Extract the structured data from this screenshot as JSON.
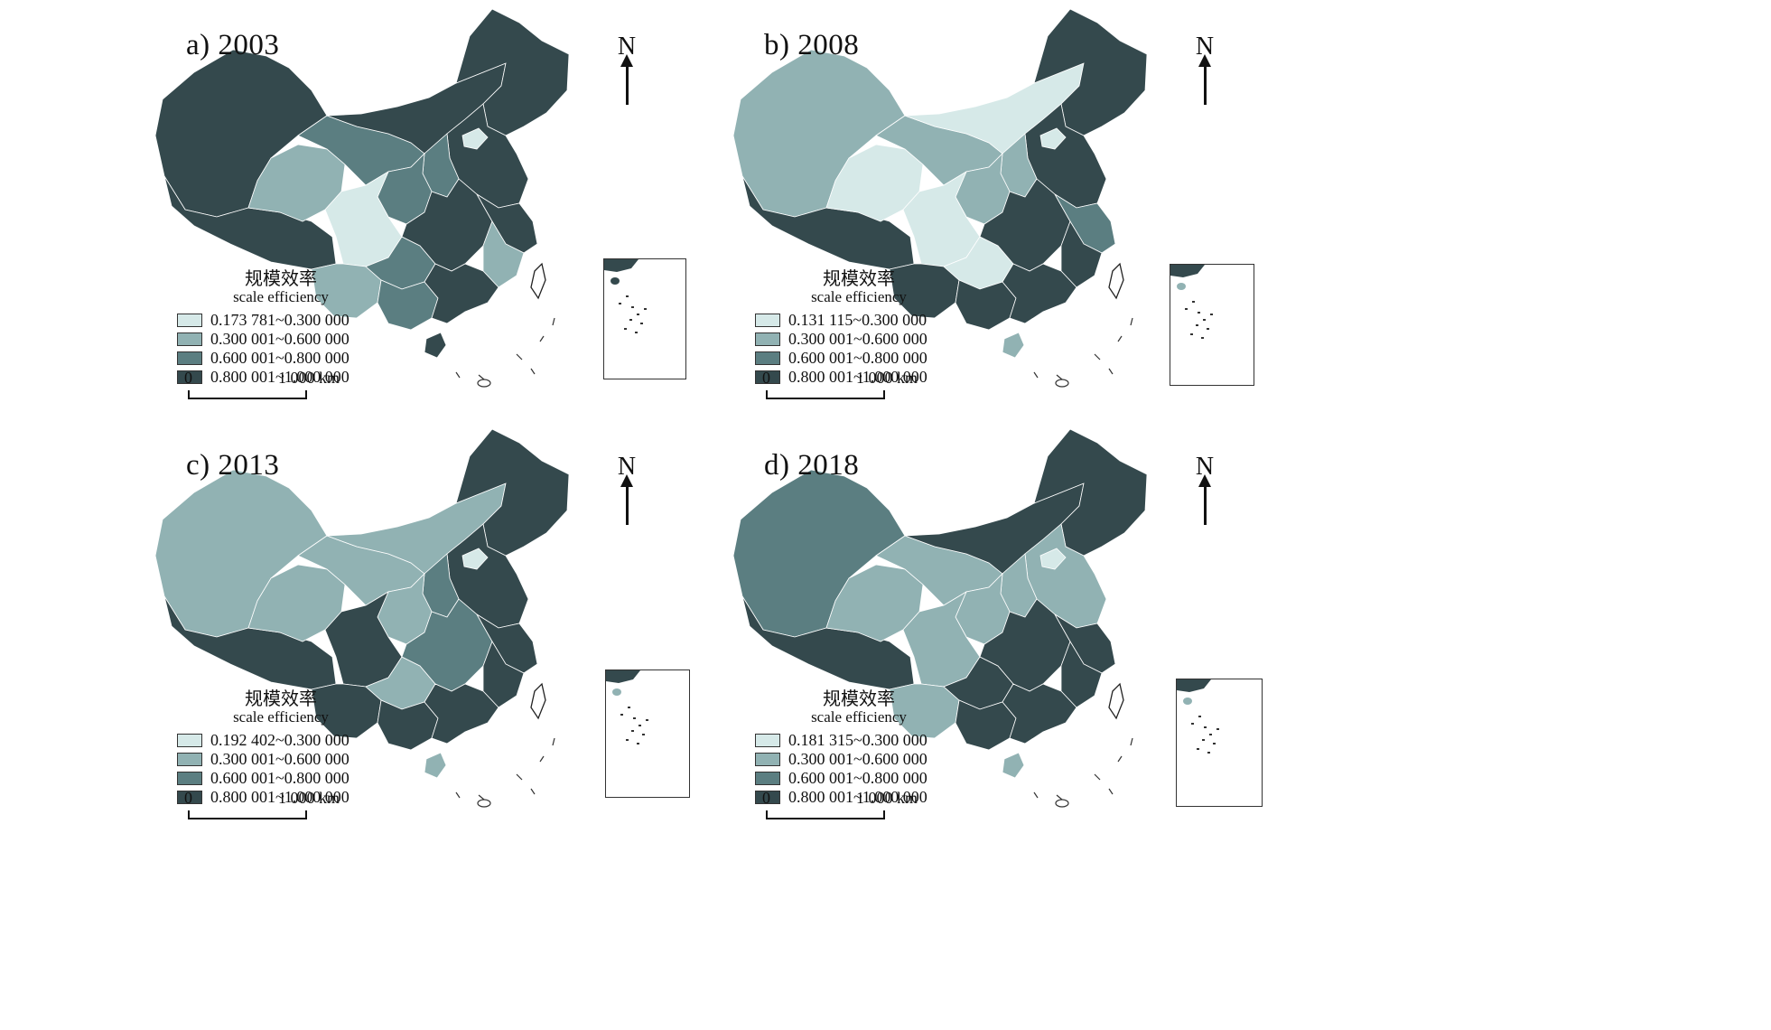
{
  "colors": {
    "class1": "#d6e9e8",
    "class2": "#91b2b3",
    "class3": "#5b7e81",
    "class4": "#34494d",
    "border": "#ffffff"
  },
  "north_label": "N",
  "legend_title_cn": "规模效率",
  "legend_title_en": "scale efficiency",
  "scale_zero": "0",
  "scale_km": "1 000 km",
  "panels": [
    {
      "title": "a) 2003",
      "classes": [
        "0.173 781~0.300 000",
        "0.300 001~0.600 000",
        "0.600 001~0.800 000",
        "0.800 001~1.000 000"
      ],
      "regions": {
        "west": 4,
        "tibet": 4,
        "qinghai": 2,
        "gansu": 3,
        "innermongolia": 4,
        "northeast": 4,
        "beijing": 1,
        "north_china": 4,
        "shanxi": 3,
        "shaanxi": 3,
        "sichuan": 1,
        "yunnan": 2,
        "guizhou": 3,
        "guangxi": 3,
        "central": 4,
        "east": 4,
        "fujian": 2,
        "guangdong": 4,
        "hainan": 4
      }
    },
    {
      "title": "b) 2008",
      "classes": [
        "0.131 115~0.300 000",
        "0.300 001~0.600 000",
        "0.600 001~0.800 000",
        "0.800 001~1.000 000"
      ],
      "regions": {
        "west": 2,
        "tibet": 4,
        "qinghai": 1,
        "gansu": 2,
        "innermongolia": 1,
        "northeast": 4,
        "beijing": 1,
        "north_china": 4,
        "shanxi": 2,
        "shaanxi": 2,
        "sichuan": 1,
        "yunnan": 4,
        "guizhou": 1,
        "guangxi": 4,
        "central": 4,
        "east": 3,
        "fujian": 4,
        "guangdong": 4,
        "hainan": 2
      }
    },
    {
      "title": "c) 2013",
      "classes": [
        "0.192 402~0.300 000",
        "0.300 001~0.600 000",
        "0.600 001~0.800 000",
        "0.800 001~1.000 000"
      ],
      "regions": {
        "west": 2,
        "tibet": 4,
        "qinghai": 2,
        "gansu": 2,
        "innermongolia": 2,
        "northeast": 4,
        "beijing": 1,
        "north_china": 4,
        "shanxi": 3,
        "shaanxi": 2,
        "sichuan": 4,
        "yunnan": 4,
        "guizhou": 2,
        "guangxi": 4,
        "central": 3,
        "east": 4,
        "fujian": 4,
        "guangdong": 4,
        "hainan": 2
      }
    },
    {
      "title": "d) 2018",
      "classes": [
        "0.181 315~0.300 000",
        "0.300 001~0.600 000",
        "0.600 001~0.800 000",
        "0.800 001~1.000 000"
      ],
      "regions": {
        "west": 3,
        "tibet": 4,
        "qinghai": 2,
        "gansu": 2,
        "innermongolia": 4,
        "northeast": 4,
        "beijing": 1,
        "north_china": 2,
        "shanxi": 2,
        "shaanxi": 2,
        "sichuan": 2,
        "yunnan": 2,
        "guizhou": 4,
        "guangxi": 4,
        "central": 4,
        "east": 4,
        "fujian": 4,
        "guangdong": 4,
        "hainan": 2
      }
    }
  ]
}
